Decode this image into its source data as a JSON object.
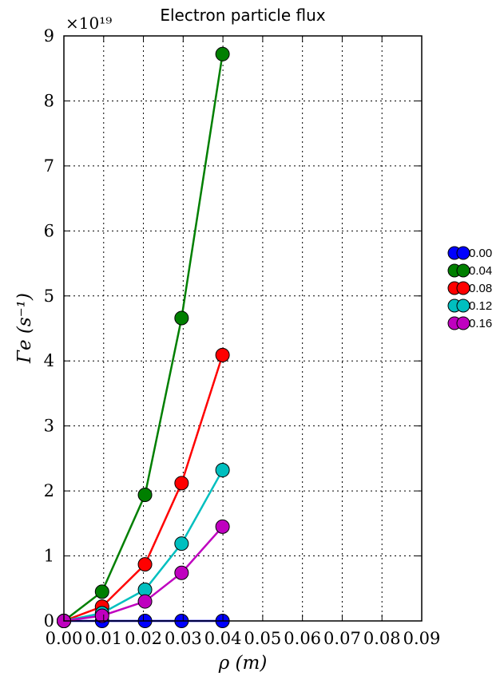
{
  "chart_data": {
    "type": "line",
    "title": "Electron particle flux",
    "xlabel": "ρ (m)",
    "ylabel": "Γe (s⁻¹)",
    "y_multiplier": "×10¹⁹",
    "xlim": [
      0.0,
      0.09
    ],
    "ylim": [
      0,
      9
    ],
    "x_ticks": [
      "0.00",
      "0.01",
      "0.02",
      "0.03",
      "0.04",
      "0.05",
      "0.06",
      "0.07",
      "0.08",
      "0.09"
    ],
    "y_ticks": [
      "0",
      "1",
      "2",
      "3",
      "4",
      "5",
      "6",
      "7",
      "8",
      "9"
    ],
    "grid": true,
    "legend_position": "right",
    "x": [
      0.0,
      0.0096,
      0.0204,
      0.0296,
      0.0399
    ],
    "series": [
      {
        "name": "0.00",
        "color": "#0000ff",
        "values": [
          0,
          0,
          0,
          0,
          0
        ]
      },
      {
        "name": "0.04",
        "color": "#007f00",
        "values": [
          0,
          0.45,
          1.94,
          4.66,
          8.72
        ]
      },
      {
        "name": "0.08",
        "color": "#ff0000",
        "values": [
          0,
          0.22,
          0.87,
          2.12,
          4.09
        ]
      },
      {
        "name": "0.12",
        "color": "#00bfbf",
        "values": [
          0,
          0.12,
          0.48,
          1.19,
          2.32
        ]
      },
      {
        "name": "0.16",
        "color": "#bf00bf",
        "values": [
          0,
          0.08,
          0.3,
          0.74,
          1.45
        ]
      }
    ]
  }
}
